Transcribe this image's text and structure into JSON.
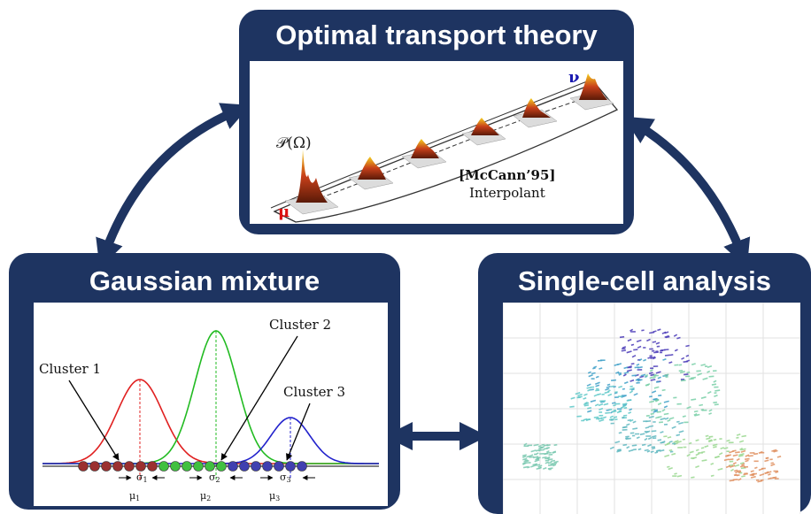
{
  "panels": {
    "ot": {
      "title": "Optimal transport theory"
    },
    "gm": {
      "title": "Gaussian mixture"
    },
    "sc": {
      "title": "Single-cell analysis"
    }
  },
  "ot_figure": {
    "space_label": "𝒫(Ω)",
    "mu": "μ",
    "nu": "ν",
    "citation": "[McCann’95]",
    "caption": "Interpolant"
  },
  "gm_figure": {
    "clusters": [
      "Cluster 1",
      "Cluster 2",
      "Cluster 3"
    ],
    "mus": [
      "μ",
      "μ",
      "μ"
    ],
    "sigmas": [
      "σ",
      "σ",
      "σ"
    ],
    "subscripts": [
      "1",
      "2",
      "3"
    ],
    "colors": [
      "#e02020",
      "#22bb22",
      "#2222cc"
    ]
  },
  "colors": {
    "panel": "#1e3461",
    "arrow": "#1e3461"
  }
}
